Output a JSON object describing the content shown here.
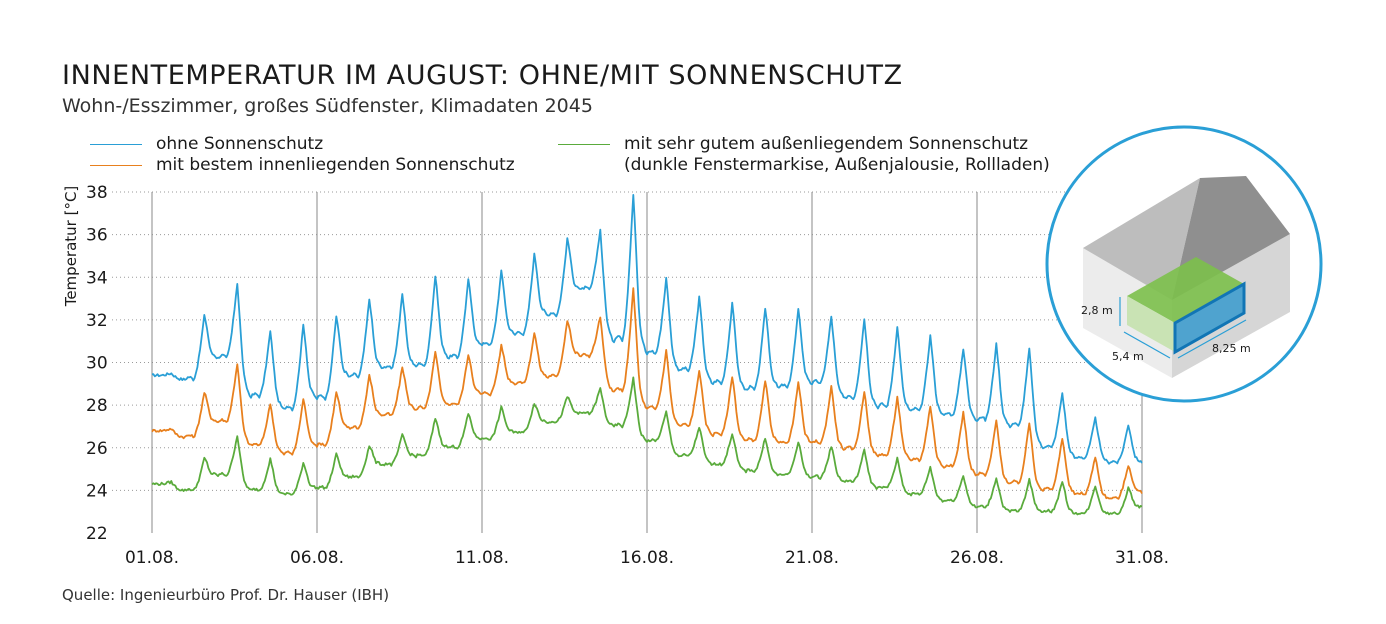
{
  "title": "INNENTEMPERATUR IM AUGUST: OHNE/MIT SONNENSCHUTZ",
  "subtitle": "Wohn-/Esszimmer, großes Südfenster, Klimadaten 2045",
  "source": "Quelle: Ingenieurbüro Prof. Dr. Hauser (IBH)",
  "legend": [
    {
      "name": "ohne Sonnenschutz",
      "color": "#2a9fd6"
    },
    {
      "name": "mit bestem innenliegenden Sonnenschutz",
      "color": "#e8801e"
    },
    {
      "name": "mit sehr gutem außenliegendem Sonnenschutz",
      "note": "(dunkle Fenstermarkise, Außenjalousie, Rollladen)",
      "color": "#5aab3c"
    }
  ],
  "inset": {
    "height_label": "2,8 m",
    "depth_label": "5,4 m",
    "width_label": "8,25 m"
  },
  "chart_data": {
    "type": "line",
    "ylabel": "Temperatur [°C]",
    "xlabel": "",
    "ylim": [
      22,
      38
    ],
    "yticks": [
      22,
      24,
      26,
      28,
      30,
      32,
      34,
      36,
      38
    ],
    "xlim": [
      1,
      31
    ],
    "xticks": [
      1,
      6,
      11,
      16,
      21,
      26,
      31
    ],
    "xtick_labels": [
      "01.08.",
      "06.08.",
      "11.08.",
      "16.08.",
      "21.08.",
      "26.08.",
      "31.08."
    ],
    "grid": "horizontal dotted, vertical at ticks",
    "series": [
      {
        "name": "ohne Sonnenschutz",
        "color": "#2a9fd6",
        "min": [
          29.4,
          29.2,
          30.2,
          28.4,
          27.8,
          28.3,
          29.3,
          29.7,
          29.8,
          30.2,
          30.8,
          31.3,
          32.2,
          33.4,
          31.0,
          30.4,
          29.6,
          29.0,
          28.7,
          28.8,
          29.0,
          28.3,
          27.9,
          27.7,
          27.5,
          27.3,
          27.0,
          26.0,
          25.5,
          25.3,
          25.3
        ],
        "max": [
          29.5,
          32.2,
          33.8,
          31.5,
          31.8,
          32.2,
          33.0,
          33.2,
          34.1,
          33.9,
          34.3,
          35.1,
          35.8,
          36.3,
          38.0,
          34.0,
          33.1,
          32.8,
          32.6,
          32.5,
          32.2,
          32.1,
          31.7,
          31.3,
          30.7,
          30.9,
          30.7,
          28.6,
          27.4,
          27.1,
          26.7
        ]
      },
      {
        "name": "mit bestem innenliegenden Sonnenschutz",
        "color": "#e8801e",
        "min": [
          26.8,
          26.5,
          27.2,
          26.1,
          25.7,
          26.1,
          26.9,
          27.5,
          27.8,
          28.0,
          28.5,
          29.0,
          29.3,
          30.3,
          28.6,
          27.8,
          27.0,
          26.6,
          26.3,
          26.2,
          26.2,
          25.9,
          25.6,
          25.4,
          25.1,
          24.7,
          24.3,
          24.0,
          23.8,
          23.6,
          23.9
        ],
        "max": [
          26.9,
          28.6,
          30.0,
          28.1,
          28.3,
          28.6,
          29.4,
          29.8,
          30.5,
          30.4,
          30.8,
          31.4,
          32.0,
          32.2,
          33.5,
          30.6,
          29.7,
          29.4,
          29.2,
          29.1,
          28.9,
          28.7,
          28.4,
          28.0,
          27.7,
          27.3,
          27.2,
          26.5,
          25.6,
          25.2,
          25.1
        ]
      },
      {
        "name": "mit sehr gutem außenliegendem Sonnenschutz",
        "color": "#5aab3c",
        "min": [
          24.3,
          24.0,
          24.7,
          24.0,
          23.8,
          24.1,
          24.6,
          25.2,
          25.6,
          26.0,
          26.4,
          26.7,
          27.2,
          27.6,
          27.0,
          26.3,
          25.6,
          25.2,
          24.9,
          24.7,
          24.6,
          24.4,
          24.1,
          23.8,
          23.5,
          23.2,
          23.0,
          23.0,
          22.9,
          22.9,
          23.2
        ],
        "max": [
          24.4,
          25.5,
          26.6,
          25.5,
          25.3,
          25.7,
          26.1,
          26.6,
          27.4,
          27.6,
          27.9,
          28.1,
          28.4,
          28.8,
          29.3,
          27.7,
          27.0,
          26.7,
          26.5,
          26.3,
          26.1,
          25.9,
          25.5,
          25.1,
          24.7,
          24.6,
          24.5,
          24.4,
          24.2,
          24.1,
          23.4
        ]
      }
    ]
  }
}
